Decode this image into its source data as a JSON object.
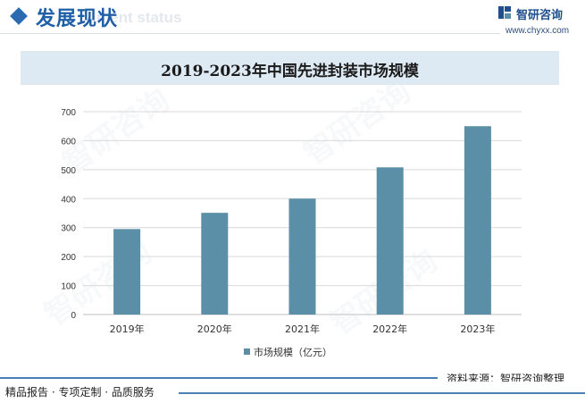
{
  "header": {
    "section_title": "发展现状",
    "section_subtitle": "ment status",
    "brand_name": "智研咨询",
    "brand_url": "www.chyxx.com"
  },
  "chart_data": {
    "type": "bar",
    "title": "2019-2023年中国先进封装市场规模",
    "categories": [
      "2019年",
      "2020年",
      "2021年",
      "2022年",
      "2023年"
    ],
    "series": [
      {
        "name": "市场规模（亿元）",
        "values": [
          295,
          351,
          400,
          508,
          650
        ]
      }
    ],
    "ylim": [
      0,
      700
    ],
    "yticks": [
      0,
      100,
      200,
      300,
      400,
      500,
      600,
      700
    ],
    "grid": true,
    "legend_position": "bottom",
    "bar_color": "#5b8fa8",
    "xlabel": "",
    "ylabel": ""
  },
  "footer": {
    "source": "资料来源：智研咨询整理",
    "tagline": "精品报告 · 专项定制 · 品质服务"
  },
  "watermark": "智研咨询",
  "colors": {
    "accent": "#1f5fa8",
    "title_band": "#dde9f3",
    "bar": "#5b8fa8",
    "grid": "#d9d9d9"
  }
}
